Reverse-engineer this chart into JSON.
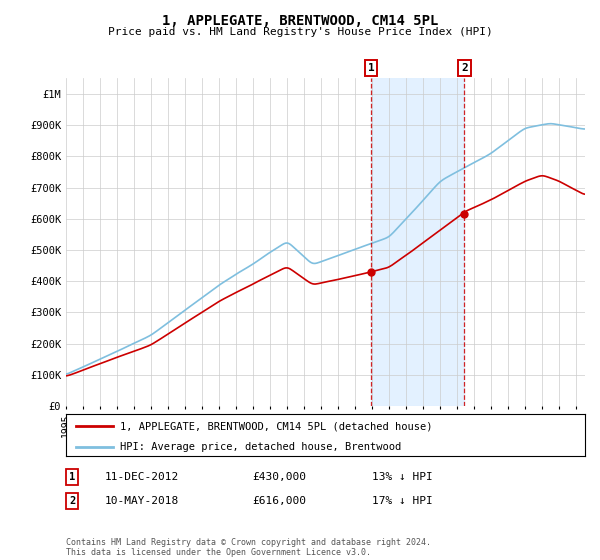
{
  "title": "1, APPLEGATE, BRENTWOOD, CM14 5PL",
  "subtitle": "Price paid vs. HM Land Registry's House Price Index (HPI)",
  "ylim": [
    0,
    1050000
  ],
  "yticks": [
    0,
    100000,
    200000,
    300000,
    400000,
    500000,
    600000,
    700000,
    800000,
    900000,
    1000000
  ],
  "ytick_labels": [
    "£0",
    "£100K",
    "£200K",
    "£300K",
    "£400K",
    "£500K",
    "£600K",
    "£700K",
    "£800K",
    "£900K",
    "£1M"
  ],
  "hpi_color": "#7fbfdf",
  "price_color": "#cc0000",
  "legend1": "1, APPLEGATE, BRENTWOOD, CM14 5PL (detached house)",
  "legend2": "HPI: Average price, detached house, Brentwood",
  "footer": "Contains HM Land Registry data © Crown copyright and database right 2024.\nThis data is licensed under the Open Government Licence v3.0.",
  "background_color": "#ffffff",
  "grid_color": "#cccccc",
  "shaded_region_color": "#ddeeff",
  "marker1_x": 2012.92,
  "marker1_y": 430000,
  "marker2_x": 2018.38,
  "marker2_y": 616000,
  "xlim_left": 1995,
  "xlim_right": 2025.5,
  "hatch_start": 2024.42
}
